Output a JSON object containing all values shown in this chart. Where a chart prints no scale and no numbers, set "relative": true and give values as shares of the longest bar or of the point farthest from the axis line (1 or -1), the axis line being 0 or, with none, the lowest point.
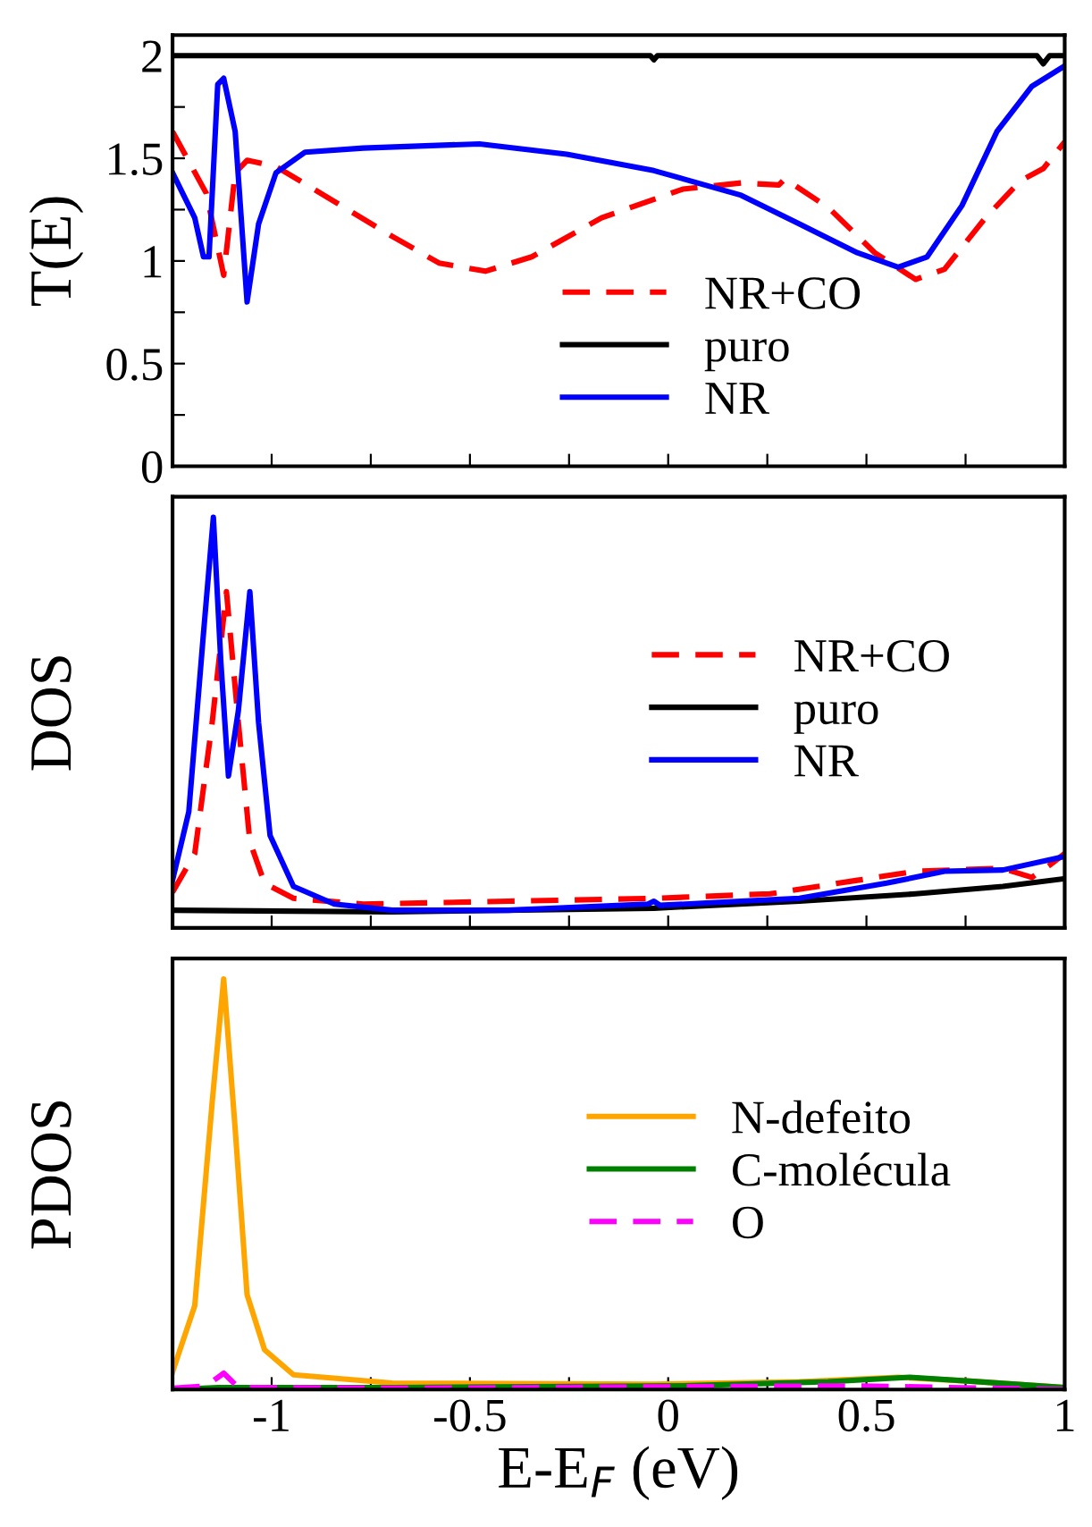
{
  "chart_data": [
    {
      "type": "line",
      "ylabel": "T(E)",
      "xlim": [
        -1.25,
        1.0
      ],
      "ylim": [
        0,
        2.1
      ],
      "xticks": [
        {
          "value": -1,
          "label": null
        },
        {
          "value": -0.75,
          "label": null
        },
        {
          "value": -0.5,
          "label": null
        },
        {
          "value": -0.25,
          "label": null
        },
        {
          "value": 0,
          "label": null
        },
        {
          "value": 0.25,
          "label": null
        },
        {
          "value": 0.5,
          "label": null
        },
        {
          "value": 0.75,
          "label": null
        },
        {
          "value": 1,
          "label": null
        }
      ],
      "yticks": [
        0,
        {
          "value": 0.25,
          "label": null
        },
        0.5,
        {
          "value": 0.75,
          "label": null
        },
        1,
        {
          "value": 1.25,
          "label": null
        },
        1.5,
        {
          "value": 1.75,
          "label": null
        },
        2
      ],
      "tick_labels": "y",
      "legend": "bottom right",
      "grid": false,
      "series": [
        {
          "name": "NR+CO",
          "color": "#ff0000",
          "line_style": "dashed",
          "x": [
            -1.25,
            -1.165,
            -1.121,
            -1.092,
            -1.062,
            -0.989,
            -0.842,
            -0.696,
            -0.578,
            -0.461,
            -0.344,
            -0.168,
            0.037,
            0.184,
            0.279,
            0.294,
            0.404,
            0.521,
            0.624,
            0.697,
            0.8,
            0.888,
            0.946,
            1.0
          ],
          "values": [
            1.63,
            1.33,
            0.93,
            1.43,
            1.49,
            1.46,
            1.29,
            1.12,
            0.99,
            0.95,
            1.02,
            1.21,
            1.35,
            1.38,
            1.37,
            1.4,
            1.26,
            1.04,
            0.91,
            0.96,
            1.21,
            1.39,
            1.45,
            1.58
          ]
        },
        {
          "name": "puro",
          "color": "#000000",
          "line_style": "solid",
          "x": [
            -1.25,
            -0.045,
            -0.036,
            -0.027,
            0.93,
            0.946,
            0.962,
            1.0
          ],
          "values": [
            2.0,
            2.0,
            1.98,
            2.0,
            2.0,
            1.96,
            2.0,
            2.0
          ]
        },
        {
          "name": "NR",
          "color": "#0000ff",
          "line_style": "solid",
          "x": [
            -1.25,
            -1.194,
            -1.172,
            -1.158,
            -1.136,
            -1.121,
            -1.092,
            -1.062,
            -1.033,
            -0.989,
            -0.916,
            -0.769,
            -0.476,
            -0.256,
            -0.036,
            0.184,
            0.331,
            0.477,
            0.58,
            0.653,
            0.741,
            0.829,
            0.917,
            1.0
          ],
          "values": [
            1.43,
            1.21,
            1.02,
            1.02,
            1.86,
            1.89,
            1.63,
            0.8,
            1.18,
            1.43,
            1.53,
            1.55,
            1.57,
            1.52,
            1.44,
            1.32,
            1.18,
            1.04,
            0.97,
            1.02,
            1.27,
            1.63,
            1.85,
            1.95
          ]
        }
      ]
    },
    {
      "type": "line",
      "ylabel": "DOS",
      "xlim": [
        -1.25,
        1.0
      ],
      "relative": true,
      "xticks": [
        {
          "value": -1,
          "label": null
        },
        {
          "value": -0.75,
          "label": null
        },
        {
          "value": -0.5,
          "label": null
        },
        {
          "value": -0.25,
          "label": null
        },
        {
          "value": 0,
          "label": null
        },
        {
          "value": 0.25,
          "label": null
        },
        {
          "value": 0.5,
          "label": null
        },
        {
          "value": 0.75,
          "label": null
        },
        {
          "value": 1,
          "label": null
        }
      ],
      "tick_labels": false,
      "legend": "right",
      "grid": false,
      "series": [
        {
          "name": "NR+CO",
          "color": "#ff0000",
          "line_style": "dashed",
          "x": [
            -1.25,
            -1.194,
            -1.15,
            -1.114,
            -1.084,
            -1.055,
            -1.018,
            -0.945,
            -0.769,
            -0.403,
            -0.036,
            0.257,
            0.477,
            0.624,
            0.844,
            0.917,
            0.961,
            1.0
          ],
          "values": [
            0.087,
            0.181,
            0.5,
            0.819,
            0.5,
            0.21,
            0.109,
            0.072,
            0.058,
            0.065,
            0.072,
            0.083,
            0.116,
            0.138,
            0.145,
            0.123,
            0.152,
            0.181
          ]
        },
        {
          "name": "puro",
          "color": "#000000",
          "line_style": "solid",
          "x": [
            -1.25,
            -0.696,
            -0.036,
            0.331,
            0.624,
            0.844,
            1.0
          ],
          "values": [
            0.043,
            0.039,
            0.048,
            0.065,
            0.083,
            0.101,
            0.12
          ]
        },
        {
          "name": "NR",
          "color": "#0000ff",
          "line_style": "solid",
          "x": [
            -1.25,
            -1.209,
            -1.172,
            -1.147,
            -1.128,
            -1.109,
            -1.084,
            -1.055,
            -1.033,
            -1.004,
            -0.945,
            -0.842,
            -0.696,
            -0.403,
            -0.051,
            -0.036,
            -0.021,
            0.184,
            0.331,
            0.551,
            0.697,
            0.844,
            1.0
          ],
          "values": [
            0.116,
            0.283,
            0.717,
            1.0,
            0.645,
            0.37,
            0.529,
            0.819,
            0.5,
            0.225,
            0.101,
            0.058,
            0.043,
            0.043,
            0.058,
            0.065,
            0.055,
            0.065,
            0.072,
            0.109,
            0.138,
            0.141,
            0.174
          ]
        }
      ]
    },
    {
      "type": "line",
      "ylabel": "PDOS",
      "xlabel": "E-E$_{F}$ (eV)",
      "xlim": [
        -1.25,
        1.0
      ],
      "relative": true,
      "xticks": [
        -1,
        {
          "value": -0.75,
          "label": null
        },
        -0.5,
        {
          "value": -0.25,
          "label": null
        },
        0,
        {
          "value": 0.25,
          "label": null
        },
        0.5,
        {
          "value": 0.75,
          "label": null
        },
        1
      ],
      "tick_labels": "x",
      "legend": "right",
      "grid": false,
      "series": [
        {
          "name": "N-defeito",
          "color": "#ffa500",
          "line_style": "solid",
          "x": [
            -1.25,
            -1.194,
            -1.15,
            -1.121,
            -1.092,
            -1.062,
            -1.018,
            -0.945,
            -0.696,
            -0.036,
            0.331,
            0.58,
            0.77,
            1.0
          ],
          "values": [
            0.043,
            0.204,
            0.7,
            1.0,
            0.634,
            0.231,
            0.097,
            0.036,
            0.016,
            0.013,
            0.019,
            0.03,
            0.02,
            0.005
          ]
        },
        {
          "name": "C-molécula",
          "color": "#008000",
          "line_style": "solid",
          "x": [
            -1.25,
            -1.136,
            -0.696,
            0.037,
            0.404,
            0.609,
            0.77,
            1.0
          ],
          "values": [
            0.0,
            0.005,
            0.005,
            0.009,
            0.019,
            0.03,
            0.02,
            0.005
          ]
        },
        {
          "name": "O",
          "color": "#ff00ff",
          "line_style": "dashed",
          "x": [
            -1.25,
            -1.165,
            -1.121,
            -1.084,
            -0.696,
            0.477,
            1.0
          ],
          "values": [
            0.003,
            0.009,
            0.04,
            0.005,
            0.003,
            0.009,
            0.0
          ]
        }
      ]
    }
  ]
}
